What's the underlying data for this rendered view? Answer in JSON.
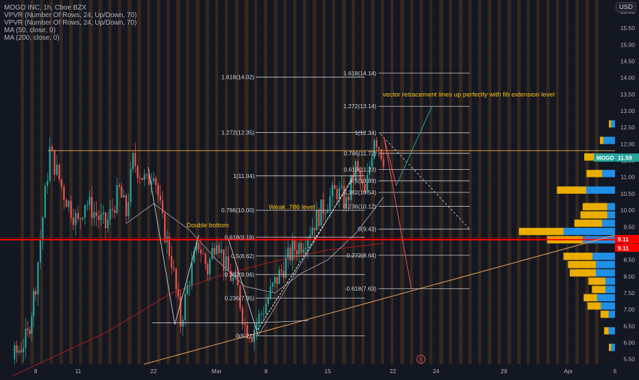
{
  "legend": {
    "title": "MOGO INC, 1h, Cboe BZX",
    "vpvr1": "VPVR (Number Of Rows, 24, Up/Down, 70)",
    "vpvr2": "VPVR (Number Of Rows, 24, Up/Down, 70)",
    "ma1": "MA (50, close, 0)",
    "ma2": "MA (200, close, 0)"
  },
  "currency": "USD",
  "price_badges": {
    "symbol": "MOGO",
    "last": "11.59",
    "red_line_a": "9.11",
    "red_line_b": "9.11"
  },
  "colors": {
    "background": "#131722",
    "up": "#26a69a",
    "down": "#ef5350",
    "annotation_text": "#f5c518",
    "session_band": "#f57c00",
    "red_line": "#ff0000",
    "trendline": "#f0a35a",
    "vp_up": "#2196f3",
    "vp_down": "#f7b500",
    "ma50": "#9598a1",
    "ma200": "#b71c1c"
  },
  "chart_data": {
    "type": "candlestick",
    "symbol": "MOGO INC",
    "interval": "1h",
    "exchange": "Cboe BZX",
    "ylim": [
      5.35,
      16.35
    ],
    "y_ticks": [
      "5.50",
      "6.00",
      "6.50",
      "7.00",
      "7.50",
      "8.00",
      "8.50",
      "9.00",
      "9.50",
      "10.00",
      "10.50",
      "11.00",
      "11.50",
      "12.00",
      "12.50",
      "13.00",
      "13.50",
      "14.00",
      "14.50",
      "15.00",
      "15.50",
      "16.00"
    ],
    "x_ticks": [
      "8",
      "11",
      "22",
      "Mar",
      "8",
      "15",
      "22",
      "24",
      "29",
      "Apr",
      "6"
    ],
    "price_path": [
      [
        "Feb 5",
        5.5
      ],
      [
        "Feb 7",
        6.2
      ],
      [
        "Feb 8",
        7.8
      ],
      [
        "Feb 9",
        11.8
      ],
      [
        "Feb 10",
        10.5
      ],
      [
        "Feb 11",
        9.6
      ],
      [
        "Feb 12",
        10.3
      ],
      [
        "Feb 15",
        9.5
      ],
      [
        "Feb 17",
        10.6
      ],
      [
        "Feb 18",
        9.9
      ],
      [
        "Feb 19",
        11.5
      ],
      [
        "Feb 21",
        10.8
      ],
      [
        "Feb 22",
        11.3
      ],
      [
        "Feb 23",
        9.6
      ],
      [
        "Feb 24",
        8.5
      ],
      [
        "Feb 25",
        6.6
      ],
      [
        "Feb 26",
        8.0
      ],
      [
        "Feb 27",
        9.0
      ],
      [
        "Feb 28",
        8.2
      ],
      [
        "Mar 1",
        9.3
      ],
      [
        "Mar 2",
        8.4
      ],
      [
        "Mar 4",
        7.6
      ],
      [
        "Mar 5",
        6.5
      ],
      [
        "Mar 6",
        6.3
      ],
      [
        "Mar 8",
        7.2
      ],
      [
        "Mar 9",
        7.8
      ],
      [
        "Mar 10",
        8.3
      ],
      [
        "Mar 11",
        8.8
      ],
      [
        "Mar 12",
        9.0
      ],
      [
        "Mar 15",
        10.3
      ],
      [
        "Mar 16",
        10.6
      ],
      [
        "Mar 17",
        10.2
      ],
      [
        "Mar 18",
        11.3
      ],
      [
        "Mar 19",
        10.4
      ],
      [
        "Mar 20",
        12.3
      ],
      [
        "Mar 21",
        11.6
      ]
    ],
    "moving_averages": [
      {
        "name": "MA (50, close, 0)",
        "points": [
          [
            "Feb 18",
            9.6
          ],
          [
            "Feb 22",
            10.2
          ],
          [
            "Feb 26",
            9.4
          ],
          [
            "Mar 1",
            8.5
          ],
          [
            "Mar 5",
            7.7
          ],
          [
            "Mar 9",
            7.5
          ],
          [
            "Mar 12",
            8.1
          ],
          [
            "Mar 15",
            8.5
          ],
          [
            "Mar 18",
            9.3
          ],
          [
            "Mar 21",
            10.4
          ]
        ]
      },
      {
        "name": "MA (200, close, 0)",
        "points": [
          [
            "Feb 5",
            5.0
          ],
          [
            "Feb 15",
            6.3
          ],
          [
            "Feb 24",
            7.5
          ],
          [
            "Mar 1",
            8.0
          ],
          [
            "Mar 8",
            8.4
          ],
          [
            "Mar 15",
            8.8
          ],
          [
            "Mar 21",
            9.0
          ]
        ]
      }
    ],
    "horizontal_lines": [
      {
        "label": "",
        "value": 11.8
      },
      {
        "label": "9.11",
        "value": 9.11
      }
    ],
    "fib_sets": [
      {
        "levels": [
          {
            "label": "1.618(14.02)",
            "value": 14.02
          },
          {
            "label": "1.272(12.35)",
            "value": 12.35
          },
          {
            "label": "1(11.04)",
            "value": 11.04
          },
          {
            "label": "0.786(10.00)",
            "value": 10.0
          },
          {
            "label": "0.618(9.19)",
            "value": 9.19
          },
          {
            "label": "0.5(8.62)",
            "value": 8.62
          },
          {
            "label": "0.382(8.06)",
            "value": 8.06
          },
          {
            "label": "0.236(7.35)",
            "value": 7.35
          },
          {
            "label": "0(6.21)",
            "value": 6.21
          }
        ]
      },
      {
        "levels": [
          {
            "label": "1.618(14.14)",
            "value": 14.14
          },
          {
            "label": "1.272(13.14)",
            "value": 13.14
          },
          {
            "label": "1(12.34)",
            "value": 12.34
          },
          {
            "label": "0.786(11.72)",
            "value": 11.72
          },
          {
            "label": "0.618(11.23)",
            "value": 11.23
          },
          {
            "label": "0.5(10.89)",
            "value": 10.89
          },
          {
            "label": "0.382(10.54)",
            "value": 10.54
          },
          {
            "label": "0.236(10.12)",
            "value": 10.12
          },
          {
            "label": "0(9.43)",
            "value": 9.43
          },
          {
            "label": "-0.272(8.64)",
            "value": 8.64
          },
          {
            "label": "-0.618(7.63)",
            "value": 7.63
          }
        ]
      }
    ],
    "annotations": [
      "vector retracement lines up perfectly with fib extension level",
      "Weak .786 level",
      "Double bottom"
    ],
    "volume_profile": [
      {
        "price": 12.5,
        "up": 0.05,
        "down": 0.06
      },
      {
        "price": 12.0,
        "up": 0.08,
        "down": 0.18
      },
      {
        "price": 11.5,
        "up": 0.4,
        "down": 0.2
      },
      {
        "price": 11.0,
        "up": 0.35,
        "down": 0.2
      },
      {
        "price": 10.5,
        "up": 0.65,
        "down": 0.45
      },
      {
        "price": 10.0,
        "up": 0.55,
        "down": 0.12
      },
      {
        "price": 9.75,
        "up": 0.6,
        "down": 0.12
      },
      {
        "price": 9.5,
        "up": 0.62,
        "down": 0.2
      },
      {
        "price": 9.25,
        "up": 1.0,
        "down": 0.8
      },
      {
        "price": 9.0,
        "up": 0.8,
        "down": 0.5
      },
      {
        "price": 8.5,
        "up": 0.65,
        "down": 0.35
      },
      {
        "price": 8.25,
        "up": 0.62,
        "down": 0.3
      },
      {
        "price": 8.0,
        "up": 0.58,
        "down": 0.3
      },
      {
        "price": 7.75,
        "up": 0.38,
        "down": 0.15
      },
      {
        "price": 7.5,
        "up": 0.3,
        "down": 0.15
      },
      {
        "price": 7.25,
        "up": 0.3,
        "down": 0.28
      },
      {
        "price": 7.0,
        "up": 0.3,
        "down": 0.22
      },
      {
        "price": 6.75,
        "up": 0.18,
        "down": 0.1
      },
      {
        "price": 6.25,
        "up": 0.1,
        "down": 0.1
      },
      {
        "price": 5.75,
        "up": 0.05,
        "down": 0.06
      }
    ]
  }
}
